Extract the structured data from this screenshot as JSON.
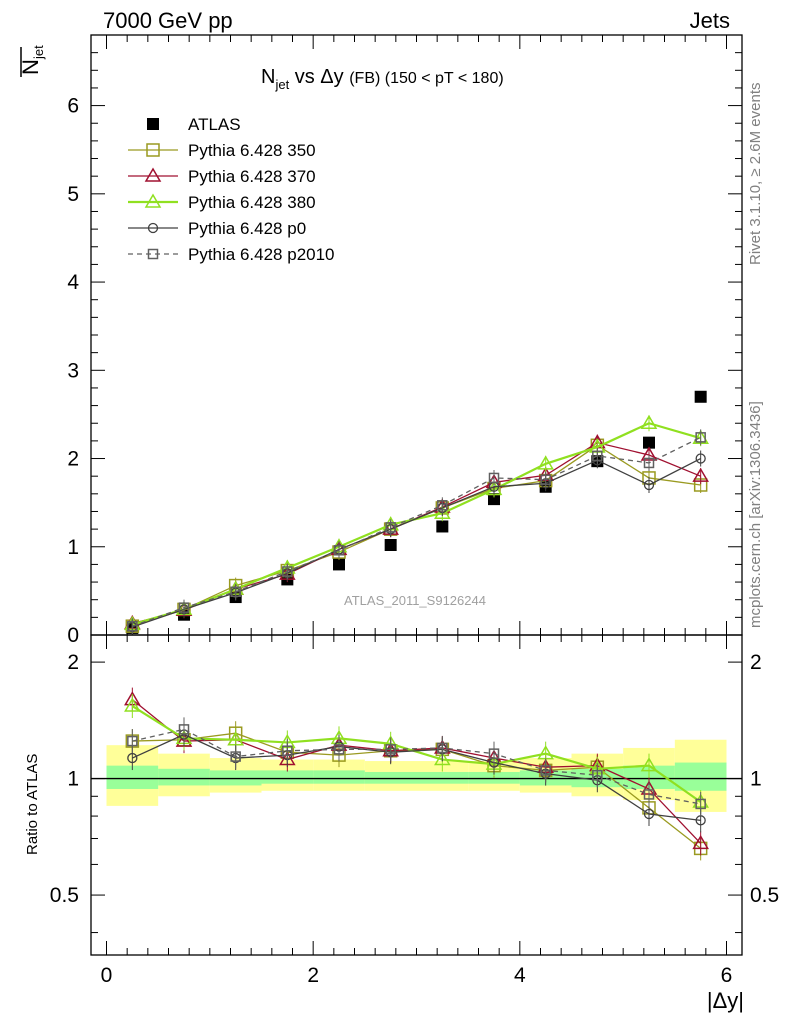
{
  "header": {
    "left": "7000 GeV pp",
    "right": "Jets"
  },
  "side_labels": {
    "rivet": "Rivet 3.1.10, ≥ 2.6M events",
    "mcplots": "mcplots.cern.ch [arXiv:1306.3436]"
  },
  "watermark": "ATLAS_2011_S9126244",
  "colors": {
    "atlas": "#000000",
    "p350": "#9a9a20",
    "p370": "#a01030",
    "p380": "#90e020",
    "p0": "#404040",
    "p2010": "#606060",
    "band_green": "#99ff99",
    "band_yellow": "#ffff99"
  },
  "chart_data": [
    {
      "type": "scatter",
      "panel": "main",
      "title": "N_jet vs Δy (FB) (150 < pT < 180)",
      "ylabel": "N̄_jet",
      "xlim": [
        -0.15,
        6.15
      ],
      "ylim": [
        0,
        6.8
      ],
      "yticks": [
        0,
        1,
        2,
        3,
        4,
        5,
        6
      ],
      "legend_position": "top-left",
      "x": [
        0.25,
        0.75,
        1.25,
        1.75,
        2.25,
        2.75,
        3.25,
        3.75,
        4.25,
        4.75,
        5.25,
        5.75
      ],
      "series": [
        {
          "name": "ATLAS",
          "style": "data",
          "values": [
            0.08,
            0.23,
            0.43,
            0.63,
            0.8,
            1.02,
            1.23,
            1.54,
            1.68,
            1.97,
            2.18,
            2.7
          ]
        },
        {
          "name": "Pythia 6.428 350",
          "style": "square",
          "values": [
            0.1,
            0.29,
            0.56,
            0.73,
            0.94,
            1.2,
            1.44,
            1.66,
            1.75,
            2.15,
            1.78,
            1.7
          ]
        },
        {
          "name": "Pythia 6.428 370",
          "style": "triangle",
          "values": [
            0.13,
            0.28,
            0.52,
            0.69,
            0.97,
            1.2,
            1.45,
            1.73,
            1.81,
            2.18,
            2.04,
            1.8
          ]
        },
        {
          "name": "Pythia 6.428 380",
          "style": "triangle",
          "values": [
            0.12,
            0.29,
            0.52,
            0.76,
            1.0,
            1.25,
            1.38,
            1.65,
            1.94,
            2.13,
            2.4,
            2.23
          ]
        },
        {
          "name": "Pythia 6.428 p0",
          "style": "circle",
          "values": [
            0.09,
            0.29,
            0.48,
            0.7,
            0.97,
            1.2,
            1.44,
            1.68,
            1.72,
            1.98,
            1.7,
            2.0
          ]
        },
        {
          "name": "Pythia 6.428 p2010",
          "style": "dashed-square",
          "values": [
            0.1,
            0.31,
            0.49,
            0.72,
            0.96,
            1.22,
            1.47,
            1.78,
            1.76,
            2.03,
            1.95,
            2.24
          ]
        }
      ]
    },
    {
      "type": "scatter",
      "panel": "ratio",
      "ylabel": "Ratio to ATLAS",
      "xlabel": "|Δy|",
      "xlim": [
        -0.15,
        6.15
      ],
      "ylim": [
        0.35,
        2.35
      ],
      "yticks": [
        0.5,
        1,
        2
      ],
      "xticks": [
        0,
        2,
        4,
        6
      ],
      "x": [
        0.25,
        0.75,
        1.25,
        1.75,
        2.25,
        2.75,
        3.25,
        3.75,
        4.25,
        4.75,
        5.25,
        5.75
      ],
      "bands": {
        "edges": [
          0.0,
          0.5,
          1.0,
          1.5,
          2.0,
          2.5,
          3.0,
          3.5,
          4.0,
          4.5,
          5.0,
          5.5,
          6.0
        ],
        "yellow": [
          [
            0.85,
            1.22
          ],
          [
            0.9,
            1.16
          ],
          [
            0.92,
            1.13
          ],
          [
            0.93,
            1.12
          ],
          [
            0.93,
            1.12
          ],
          [
            0.93,
            1.11
          ],
          [
            0.93,
            1.11
          ],
          [
            0.93,
            1.11
          ],
          [
            0.92,
            1.13
          ],
          [
            0.9,
            1.16
          ],
          [
            0.88,
            1.2
          ],
          [
            0.82,
            1.26
          ]
        ],
        "green": [
          [
            0.94,
            1.08
          ],
          [
            0.96,
            1.06
          ],
          [
            0.96,
            1.05
          ],
          [
            0.97,
            1.05
          ],
          [
            0.97,
            1.05
          ],
          [
            0.97,
            1.04
          ],
          [
            0.97,
            1.04
          ],
          [
            0.97,
            1.04
          ],
          [
            0.96,
            1.05
          ],
          [
            0.95,
            1.06
          ],
          [
            0.94,
            1.08
          ],
          [
            0.93,
            1.1
          ]
        ]
      },
      "series": [
        {
          "name": "Pythia 6.428 350",
          "style": "square",
          "values": [
            1.25,
            1.26,
            1.31,
            1.17,
            1.15,
            1.18,
            1.19,
            1.08,
            1.05,
            1.07,
            0.84,
            0.66
          ]
        },
        {
          "name": "Pythia 6.428 370",
          "style": "triangle",
          "values": [
            1.6,
            1.25,
            1.26,
            1.12,
            1.22,
            1.18,
            1.2,
            1.13,
            1.07,
            1.08,
            0.94,
            0.68
          ]
        },
        {
          "name": "Pythia 6.428 380",
          "style": "triangle",
          "values": [
            1.54,
            1.27,
            1.26,
            1.24,
            1.27,
            1.23,
            1.12,
            1.09,
            1.16,
            1.06,
            1.08,
            0.87
          ]
        },
        {
          "name": "Pythia 6.428 p0",
          "style": "circle",
          "values": [
            1.13,
            1.3,
            1.13,
            1.15,
            1.21,
            1.17,
            1.19,
            1.1,
            1.03,
            0.99,
            0.81,
            0.78
          ]
        },
        {
          "name": "Pythia 6.428 p2010",
          "style": "dashed-square",
          "values": [
            1.25,
            1.34,
            1.14,
            1.18,
            1.19,
            1.19,
            1.2,
            1.16,
            1.05,
            1.02,
            0.91,
            0.86
          ]
        }
      ]
    }
  ]
}
